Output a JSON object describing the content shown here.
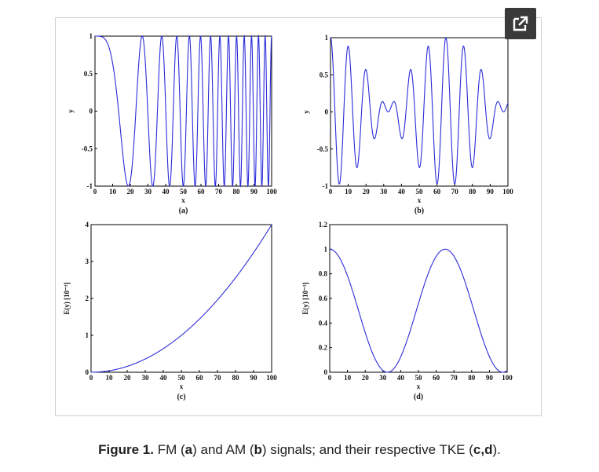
{
  "caption": {
    "label": "Figure 1.",
    "t1": " FM (",
    "a": "a",
    "t2": ") and AM (",
    "b": "b",
    "t3": ") signals; and their respective TKE (",
    "cd": "c,d",
    "t4": ")."
  },
  "icons": {
    "expand": "expand-icon"
  },
  "colors": {
    "line": "#2b2bd9",
    "axis": "#000000"
  },
  "chart_data": [
    {
      "id": "a",
      "type": "line",
      "sublabel": "(a)",
      "xlabel": "x",
      "ylabel": "y",
      "xlim": [
        0,
        100
      ],
      "ylim": [
        -1,
        1
      ],
      "xticks": [
        0,
        10,
        20,
        30,
        40,
        50,
        60,
        70,
        80,
        90,
        100
      ],
      "yticks": [
        -1,
        -0.5,
        0,
        0.5,
        1
      ],
      "ytick_labels": [
        "-1",
        "-0.5",
        "0",
        "0.5",
        "1"
      ],
      "function": "fm",
      "description_params": {
        "form": "cos(k*x^2)",
        "k": 0.0088
      }
    },
    {
      "id": "b",
      "type": "line",
      "sublabel": "(b)",
      "xlabel": "x",
      "ylabel": "y",
      "xlim": [
        0,
        100
      ],
      "ylim": [
        -1,
        1
      ],
      "xticks": [
        0,
        10,
        20,
        30,
        40,
        50,
        60,
        70,
        80,
        90,
        100
      ],
      "yticks": [
        -1,
        -0.5,
        0,
        0.5,
        1
      ],
      "ytick_labels": [
        "-1",
        "-0.5",
        "0",
        "0.5",
        "1"
      ],
      "function": "am",
      "description_params": {
        "form": "cos(wm*x)*cos(wc*x)",
        "wm": 0.0483,
        "wc": 0.628
      }
    },
    {
      "id": "c",
      "type": "line",
      "sublabel": "(c)",
      "xlabel": "x",
      "ylabel": "E(y) [10⁻²]",
      "xlim": [
        0,
        100
      ],
      "ylim": [
        0,
        4
      ],
      "xticks": [
        0,
        10,
        20,
        30,
        40,
        50,
        60,
        70,
        80,
        90,
        100
      ],
      "yticks": [
        0,
        1,
        2,
        3,
        4
      ],
      "ytick_labels": [
        "0",
        "1",
        "2",
        "3",
        "4"
      ],
      "function": "quadratic",
      "description_params": {
        "form": "a*x^2",
        "a": 0.0004
      }
    },
    {
      "id": "d",
      "type": "line",
      "sublabel": "(d)",
      "xlabel": "x",
      "ylabel": "E(y) [10⁻²]",
      "xlim": [
        0,
        100
      ],
      "ylim": [
        0,
        1.2
      ],
      "xticks": [
        0,
        10,
        20,
        30,
        40,
        50,
        60,
        70,
        80,
        90,
        100
      ],
      "yticks": [
        0,
        0.2,
        0.4,
        0.6,
        0.8,
        1,
        1.2
      ],
      "ytick_labels": [
        "0",
        "0.2",
        "0.4",
        "0.6",
        "0.8",
        "1",
        "1.2"
      ],
      "function": "cos2",
      "description_params": {
        "form": "cos^2(wm*x)",
        "wm": 0.0483
      }
    }
  ]
}
